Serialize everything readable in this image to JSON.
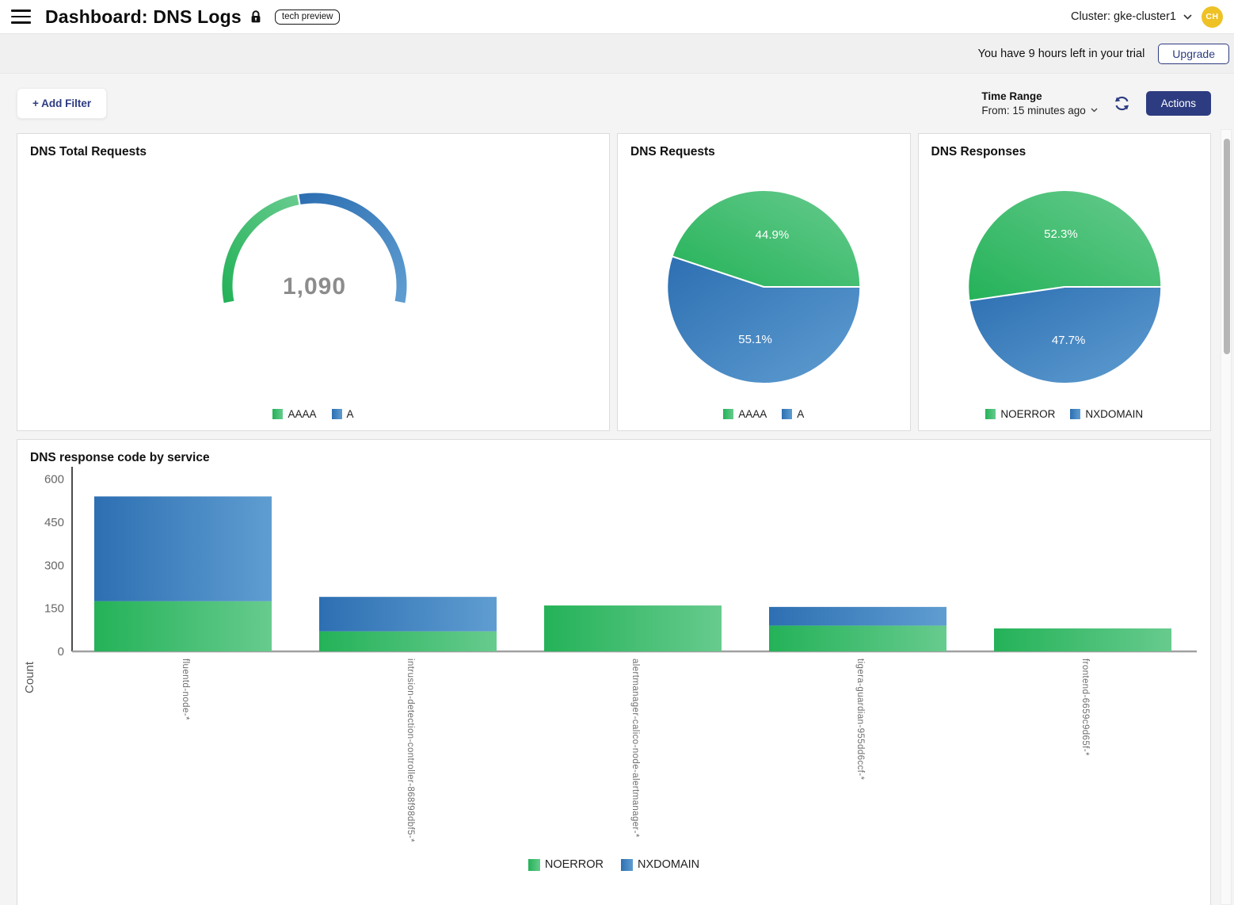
{
  "header": {
    "title": "Dashboard: DNS Logs",
    "badge": "tech preview",
    "cluster_label": "Cluster: gke-cluster1",
    "avatar_initials": "CH"
  },
  "trial_banner": {
    "message": "You have 9 hours left in your trial",
    "upgrade_label": "Upgrade"
  },
  "toolbar": {
    "add_filter_label": "+ Add Filter",
    "time_range_label": "Time Range",
    "time_range_value": "From: 15 minutes ago",
    "actions_label": "Actions"
  },
  "colors": {
    "green_dark": "#24b258",
    "green_light": "#67cb8e",
    "blue_dark": "#2d6fb2",
    "blue_light": "#5f9dd1",
    "navy": "#2d3c80",
    "avatar_bg": "#eec125",
    "gauge_value": "#8c8c8c",
    "axis_text": "#666666",
    "category_text": "#6e6e6e"
  },
  "chart_data": [
    {
      "type": "gauge",
      "title": "DNS Total Requests",
      "value_display": "1,090",
      "segments": [
        {
          "label": "AAAA",
          "pct": 44.9
        },
        {
          "label": "A",
          "pct": 55.1
        }
      ],
      "legend": [
        {
          "label": "AAAA",
          "color": "green"
        },
        {
          "label": "A",
          "color": "blue"
        }
      ]
    },
    {
      "type": "pie",
      "title": "DNS Requests",
      "slices": [
        {
          "label": "AAAA",
          "pct": 44.9
        },
        {
          "label": "A",
          "pct": 55.1
        }
      ],
      "legend": [
        {
          "label": "AAAA",
          "color": "green"
        },
        {
          "label": "A",
          "color": "blue"
        }
      ]
    },
    {
      "type": "pie",
      "title": "DNS Responses",
      "slices": [
        {
          "label": "NOERROR",
          "pct": 52.3
        },
        {
          "label": "NXDOMAIN",
          "pct": 47.7
        }
      ],
      "legend": [
        {
          "label": "NOERROR",
          "color": "green"
        },
        {
          "label": "NXDOMAIN",
          "color": "blue"
        }
      ]
    },
    {
      "type": "bar",
      "title": "DNS response code by service",
      "ylabel": "Count",
      "ylim": [
        0,
        600
      ],
      "yticks": [
        0,
        150,
        300,
        450,
        600
      ],
      "categories": [
        "fluentd-node-*",
        "intrusion-detection-controller-868f98dbf5-*",
        "alertmanager-calico-node-alertmanager-*",
        "tigera-guardian-955dd6ccf-*",
        "frontend-6659c9d65f-*"
      ],
      "series": [
        {
          "name": "NOERROR",
          "color": "green",
          "values": [
            175,
            70,
            160,
            90,
            80
          ]
        },
        {
          "name": "NXDOMAIN",
          "color": "blue",
          "values": [
            365,
            120,
            0,
            65,
            0
          ]
        }
      ],
      "legend": [
        {
          "label": "NOERROR",
          "color": "green"
        },
        {
          "label": "NXDOMAIN",
          "color": "blue"
        }
      ]
    }
  ]
}
